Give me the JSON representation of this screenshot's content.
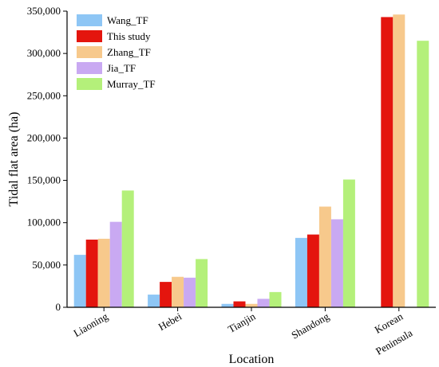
{
  "chart_data": {
    "type": "bar",
    "xlabel": "Location",
    "ylabel": "Tidal flat area (ha)",
    "ylim": [
      0,
      350000
    ],
    "yticks": [
      0,
      50000,
      100000,
      150000,
      200000,
      250000,
      300000,
      350000
    ],
    "ytick_labels": [
      "0",
      "50,000",
      "100,000",
      "150,000",
      "200,000",
      "250,000",
      "300,000",
      "350,000"
    ],
    "categories": [
      {
        "lines": [
          "Liaoning"
        ]
      },
      {
        "lines": [
          "Hebei"
        ]
      },
      {
        "lines": [
          "Tianjin"
        ]
      },
      {
        "lines": [
          "Shandong"
        ]
      },
      {
        "lines": [
          "Korean",
          "Peninsula"
        ]
      }
    ],
    "series": [
      {
        "name": "Wang_TF",
        "color": "#8ec6f5",
        "values": [
          62000,
          15000,
          4000,
          82000,
          null
        ]
      },
      {
        "name": "This study",
        "color": "#e4150e",
        "values": [
          80000,
          30000,
          7000,
          86000,
          343000
        ]
      },
      {
        "name": "Zhang_TF",
        "color": "#f7c98c",
        "values": [
          81000,
          36000,
          4000,
          119000,
          346000
        ]
      },
      {
        "name": "Jia_TF",
        "color": "#c9a9f2",
        "values": [
          101000,
          35000,
          10000,
          104000,
          null
        ]
      },
      {
        "name": "Murray_TF",
        "color": "#b4f07a",
        "values": [
          138000,
          57000,
          18000,
          151000,
          315000
        ]
      }
    ],
    "legend_position": "top-left",
    "grid": false
  }
}
